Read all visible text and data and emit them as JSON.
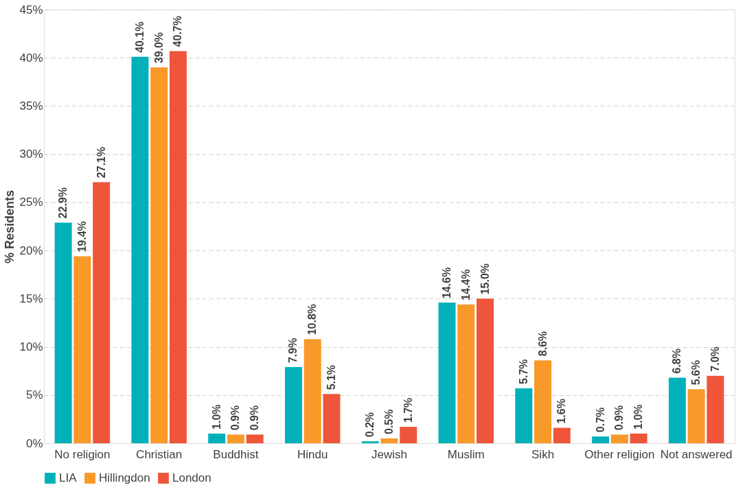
{
  "chart_data": {
    "type": "bar",
    "ylabel": "% Residents",
    "categories": [
      "No religion",
      "Christian",
      "Buddhist",
      "Hindu",
      "Jewish",
      "Muslim",
      "Sikh",
      "Other religion",
      "Not answered"
    ],
    "series": [
      {
        "name": "LIA",
        "color": "#00b1b9",
        "values": [
          22.9,
          40.1,
          1.0,
          7.9,
          0.2,
          14.6,
          5.7,
          0.7,
          6.8
        ],
        "value_labels": [
          "22.9%",
          "40.1%",
          "1.0%",
          "7.9%",
          "0.2%",
          "14.6%",
          "5.7%",
          "0.7%",
          "6.8%"
        ]
      },
      {
        "name": "Hillingdon",
        "color": "#f8992a",
        "values": [
          19.4,
          39.0,
          0.9,
          10.8,
          0.5,
          14.4,
          8.6,
          0.9,
          5.6
        ],
        "value_labels": [
          "19.4%",
          "39.0%",
          "0.9%",
          "10.8%",
          "0.5%",
          "14.4%",
          "8.6%",
          "0.9%",
          "5.6%"
        ]
      },
      {
        "name": "London",
        "color": "#ee553b",
        "values": [
          27.1,
          40.7,
          0.9,
          5.1,
          1.7,
          15.0,
          1.6,
          1.0,
          7.0
        ],
        "value_labels": [
          "27.1%",
          "40.7%",
          "0.9%",
          "5.1%",
          "1.7%",
          "15.0%",
          "1.6%",
          "1.0%",
          "7.0%"
        ]
      }
    ],
    "ylim": [
      0,
      45
    ],
    "yticks": [
      {
        "value": 0,
        "label": "0%"
      },
      {
        "value": 5,
        "label": "5%"
      },
      {
        "value": 10,
        "label": "10%"
      },
      {
        "value": 15,
        "label": "15%"
      },
      {
        "value": 20,
        "label": "20%"
      },
      {
        "value": 25,
        "label": "25%"
      },
      {
        "value": 30,
        "label": "30%"
      },
      {
        "value": 35,
        "label": "35%"
      },
      {
        "value": 40,
        "label": "40%"
      },
      {
        "value": 45,
        "label": "45%"
      }
    ],
    "grid": "y",
    "legend": "bottom"
  }
}
